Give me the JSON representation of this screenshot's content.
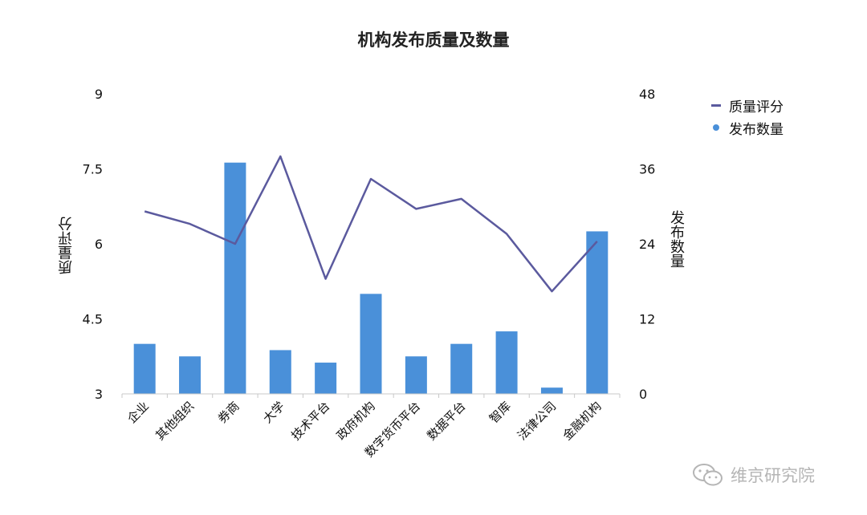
{
  "chart_data": {
    "type": "bar",
    "title": "机构发布质量及数量",
    "categories": [
      "企业",
      "其他组织",
      "券商",
      "大学",
      "技术平台",
      "政府机构",
      "数字货币平台",
      "数据平台",
      "智库",
      "法律公司",
      "金融机构"
    ],
    "y_left": {
      "label": "质量评分",
      "ticks": [
        "9",
        "7.5",
        "6",
        "4.5",
        "3"
      ],
      "range": [
        3,
        9
      ]
    },
    "y_right": {
      "label": "发布数量",
      "ticks": [
        "48",
        "36",
        "24",
        "12",
        "0"
      ],
      "range": [
        0,
        48
      ]
    },
    "series": [
      {
        "name": "质量评分",
        "type": "line",
        "axis": "left",
        "color": "#5b5a9e",
        "values": [
          6.65,
          6.4,
          6.0,
          7.75,
          5.3,
          7.3,
          6.7,
          6.9,
          6.2,
          5.05,
          6.05
        ]
      },
      {
        "name": "发布数量",
        "type": "bar",
        "axis": "right",
        "color": "#4a90d9",
        "values": [
          8,
          6,
          37,
          7,
          5,
          16,
          6,
          8,
          10,
          1,
          26
        ]
      }
    ],
    "legend_position": "top-right",
    "grid": false
  },
  "watermark": {
    "text": "维京研究院"
  }
}
